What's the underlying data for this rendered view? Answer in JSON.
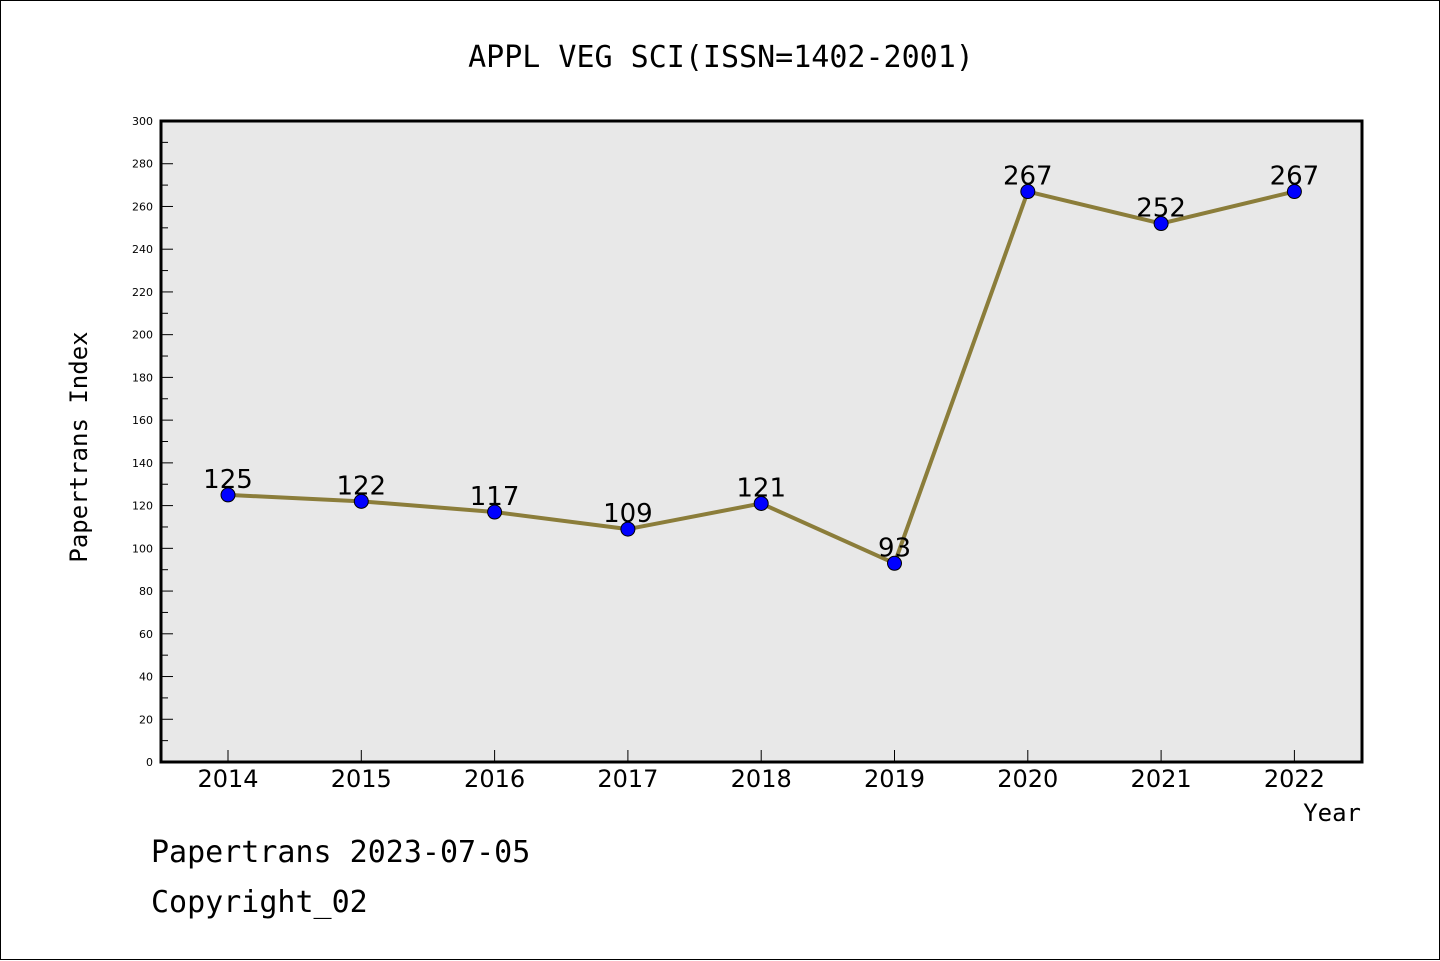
{
  "chart_data": {
    "type": "line",
    "title": "APPL VEG SCI(ISSN=1402-2001)",
    "xlabel": "Year",
    "ylabel": "Papertrans Index",
    "categories": [
      "2014",
      "2015",
      "2016",
      "2017",
      "2018",
      "2019",
      "2020",
      "2021",
      "2022"
    ],
    "series": [
      {
        "values": [
          125,
          122,
          117,
          109,
          121,
          93,
          267,
          252,
          267
        ]
      }
    ],
    "ylim": [
      0,
      300
    ],
    "yticks": [
      0,
      20,
      40,
      60,
      80,
      100,
      120,
      140,
      160,
      180,
      200,
      220,
      240,
      260,
      280,
      300
    ],
    "grid": false,
    "data_labels": true,
    "colors": {
      "line": "#8b7d3a",
      "marker": "#0000ff",
      "plot_background": "#e8e8e8",
      "axes": "#000000"
    }
  },
  "footer": {
    "line1": "Papertrans 2023-07-05",
    "line2": "Copyright_02"
  }
}
